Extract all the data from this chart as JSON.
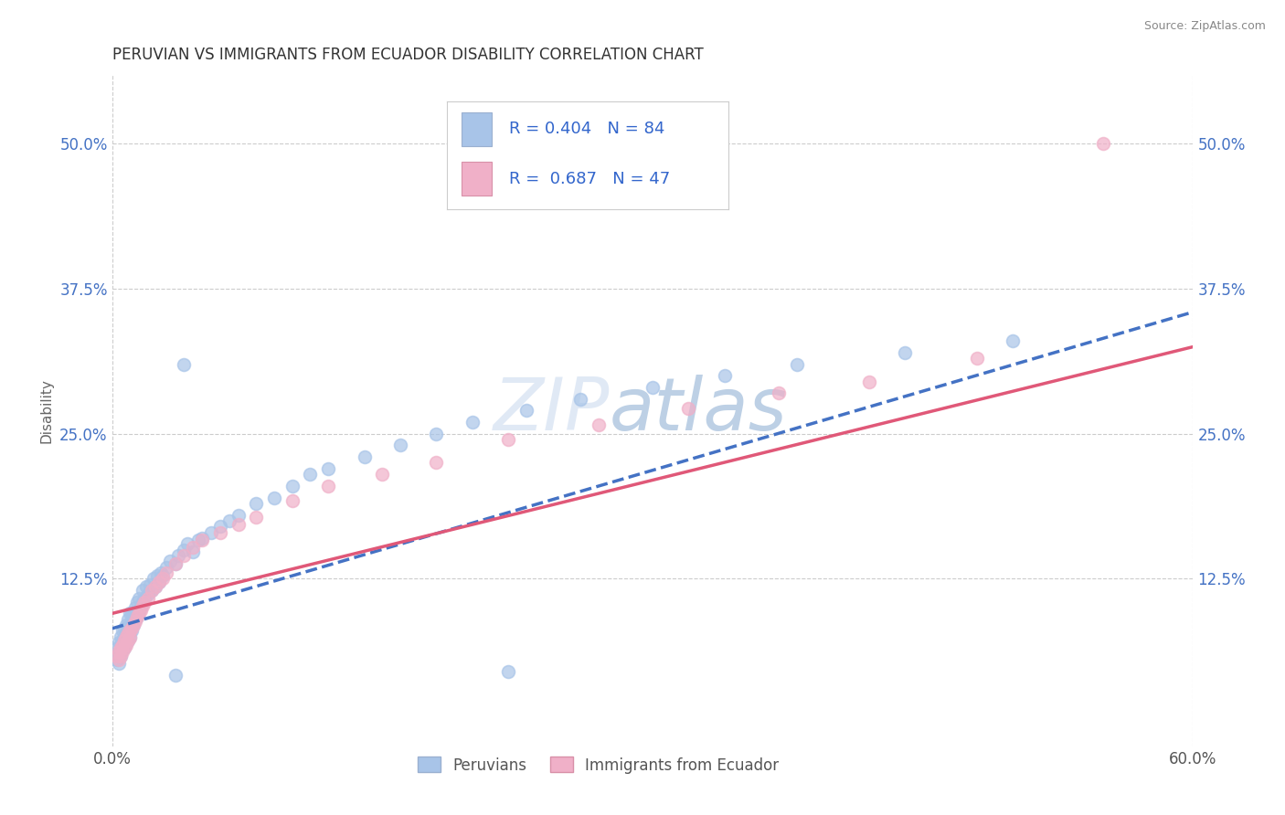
{
  "title": "PERUVIAN VS IMMIGRANTS FROM ECUADOR DISABILITY CORRELATION CHART",
  "source": "Source: ZipAtlas.com",
  "ylabel": "Disability",
  "xlim": [
    0.0,
    0.6
  ],
  "ylim": [
    -0.02,
    0.56
  ],
  "ytick_positions": [
    0.125,
    0.25,
    0.375,
    0.5
  ],
  "ytick_labels": [
    "12.5%",
    "25.0%",
    "37.5%",
    "50.0%"
  ],
  "peruvian_color": "#a8c4e8",
  "ecuador_color": "#f0b0c8",
  "peruvian_line_color": "#4472c4",
  "ecuador_line_color": "#e05878",
  "R_peruvian": 0.404,
  "N_peruvian": 84,
  "R_ecuador": 0.687,
  "N_ecuador": 47,
  "legend_label_1": "Peruvians",
  "legend_label_2": "Immigrants from Ecuador",
  "watermark_zip": "ZIP",
  "watermark_atlas": "atlas",
  "background_color": "#ffffff",
  "grid_color": "#cccccc",
  "peru_trend_start": 0.082,
  "peru_trend_end": 0.355,
  "ecu_trend_start": 0.095,
  "ecu_trend_end": 0.325,
  "peruvian_scatter_x": [
    0.002,
    0.003,
    0.003,
    0.004,
    0.004,
    0.004,
    0.005,
    0.005,
    0.005,
    0.005,
    0.006,
    0.006,
    0.006,
    0.006,
    0.007,
    0.007,
    0.007,
    0.007,
    0.008,
    0.008,
    0.008,
    0.009,
    0.009,
    0.009,
    0.01,
    0.01,
    0.01,
    0.011,
    0.011,
    0.011,
    0.012,
    0.012,
    0.013,
    0.013,
    0.014,
    0.014,
    0.015,
    0.015,
    0.016,
    0.017,
    0.017,
    0.018,
    0.019,
    0.02,
    0.021,
    0.022,
    0.023,
    0.024,
    0.025,
    0.026,
    0.027,
    0.028,
    0.03,
    0.032,
    0.035,
    0.037,
    0.04,
    0.042,
    0.045,
    0.048,
    0.05,
    0.055,
    0.06,
    0.065,
    0.07,
    0.08,
    0.09,
    0.1,
    0.11,
    0.12,
    0.14,
    0.16,
    0.18,
    0.2,
    0.23,
    0.26,
    0.3,
    0.34,
    0.38,
    0.44,
    0.5,
    0.22,
    0.04,
    0.035
  ],
  "peruvian_scatter_y": [
    0.06,
    0.055,
    0.065,
    0.058,
    0.07,
    0.052,
    0.062,
    0.068,
    0.075,
    0.058,
    0.07,
    0.064,
    0.072,
    0.08,
    0.065,
    0.075,
    0.068,
    0.082,
    0.07,
    0.078,
    0.085,
    0.072,
    0.08,
    0.09,
    0.075,
    0.085,
    0.095,
    0.08,
    0.088,
    0.095,
    0.085,
    0.095,
    0.09,
    0.1,
    0.092,
    0.105,
    0.098,
    0.108,
    0.1,
    0.105,
    0.115,
    0.108,
    0.118,
    0.112,
    0.12,
    0.115,
    0.125,
    0.118,
    0.128,
    0.122,
    0.13,
    0.128,
    0.135,
    0.14,
    0.138,
    0.145,
    0.15,
    0.155,
    0.148,
    0.158,
    0.16,
    0.165,
    0.17,
    0.175,
    0.18,
    0.19,
    0.195,
    0.205,
    0.215,
    0.22,
    0.23,
    0.24,
    0.25,
    0.26,
    0.27,
    0.28,
    0.29,
    0.3,
    0.31,
    0.32,
    0.33,
    0.045,
    0.31,
    0.042
  ],
  "ecuador_scatter_x": [
    0.003,
    0.004,
    0.004,
    0.005,
    0.005,
    0.006,
    0.006,
    0.007,
    0.007,
    0.008,
    0.008,
    0.009,
    0.009,
    0.01,
    0.01,
    0.011,
    0.012,
    0.013,
    0.014,
    0.015,
    0.016,
    0.017,
    0.018,
    0.02,
    0.022,
    0.024,
    0.026,
    0.028,
    0.03,
    0.035,
    0.04,
    0.045,
    0.05,
    0.06,
    0.07,
    0.08,
    0.1,
    0.12,
    0.15,
    0.18,
    0.22,
    0.27,
    0.32,
    0.37,
    0.42,
    0.48,
    0.55
  ],
  "ecuador_scatter_y": [
    0.058,
    0.062,
    0.055,
    0.065,
    0.058,
    0.068,
    0.062,
    0.072,
    0.065,
    0.075,
    0.068,
    0.078,
    0.072,
    0.08,
    0.074,
    0.082,
    0.085,
    0.088,
    0.092,
    0.095,
    0.098,
    0.102,
    0.105,
    0.108,
    0.115,
    0.118,
    0.122,
    0.125,
    0.13,
    0.138,
    0.145,
    0.152,
    0.158,
    0.165,
    0.172,
    0.178,
    0.192,
    0.205,
    0.215,
    0.225,
    0.245,
    0.258,
    0.272,
    0.285,
    0.295,
    0.315,
    0.5
  ]
}
